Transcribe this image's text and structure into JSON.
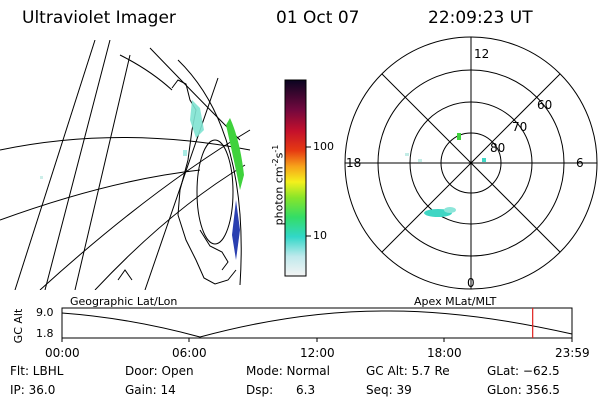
{
  "header": {
    "title": "Ultraviolet Imager",
    "date": "01 Oct 07",
    "time": "22:09:23 UT"
  },
  "colorbar": {
    "unit_prefix": "photon cm",
    "unit_exp1": "-2",
    "unit_mid": "s",
    "unit_exp2": "-1",
    "tick_high": "100",
    "tick_low": "10"
  },
  "polar_plot": {
    "mlt_top": "12",
    "mlt_bottom": "0",
    "mlt_left": "18",
    "mlt_right": "6",
    "lat_60": "60",
    "lat_70": "70",
    "lat_80": "80"
  },
  "timeline": {
    "left_label": "Geographic Lat/Lon",
    "right_label": "Apex MLat/MLT",
    "axis_title": "GC Alt",
    "y_high": "9.0",
    "y_low": "1.8",
    "times": [
      "00:00",
      "06:00",
      "12:00",
      "18:00",
      "23:59"
    ],
    "current_time_fraction": 0.9229
  },
  "info": {
    "flt": "Flt: LBHL",
    "ip": "IP: 36.0",
    "door": "Door: Open",
    "gain": "Gain: 14",
    "mode": "Mode: Normal",
    "dsp": "Dsp:      6.3",
    "gc_alt": "GC Alt: 5.7 Re",
    "seq": "Seq: 39",
    "glat": "GLat: −62.5",
    "glon": "GLon: 356.5"
  },
  "colors": {
    "marker": "#e0201c"
  }
}
